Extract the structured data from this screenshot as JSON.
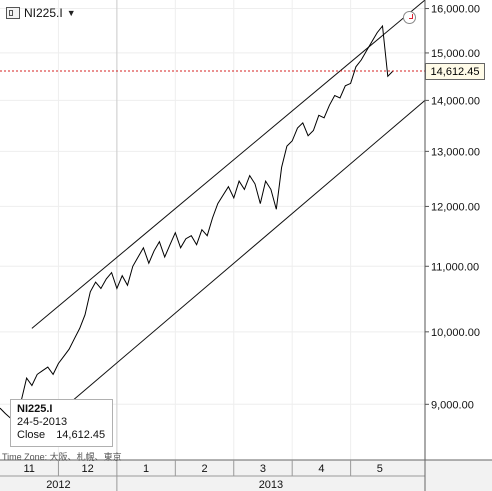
{
  "header": {
    "symbol": "NI225.I",
    "dropdown_icon": "caret-down-icon",
    "symbol_icon": "instrument-icon",
    "clock_icon": "clock-icon"
  },
  "info_box": {
    "symbol": "NI225.I",
    "date": "24-5-2013",
    "close_label": "Close",
    "close_value": "14,612.45"
  },
  "timezone_label": "Time Zone: 大阪、札幌、東京",
  "last_price_label": "14,612.45",
  "chart_data": {
    "type": "line",
    "title": "",
    "xlabel": "",
    "ylabel": "",
    "ylim": [
      8300,
      16200
    ],
    "y_ticks": [
      {
        "value": 9000,
        "label": "9,000.00"
      },
      {
        "value": 10000,
        "label": "10,000.00"
      },
      {
        "value": 11000,
        "label": "11,000.00"
      },
      {
        "value": 12000,
        "label": "12,000.00"
      },
      {
        "value": 13000,
        "label": "13,000.00"
      },
      {
        "value": 14000,
        "label": "14,000.00"
      },
      {
        "value": 15000,
        "label": "15,000.00"
      },
      {
        "value": 16000,
        "label": "16,000.00"
      }
    ],
    "months": [
      {
        "label": "11",
        "start": 0,
        "end": 4.4
      },
      {
        "label": "12",
        "start": 4.4,
        "end": 8.8
      },
      {
        "label": "1",
        "start": 8.8,
        "end": 13.2
      },
      {
        "label": "2",
        "start": 13.2,
        "end": 17.6
      },
      {
        "label": "3",
        "start": 17.6,
        "end": 22
      },
      {
        "label": "4",
        "start": 22,
        "end": 26.4
      },
      {
        "label": "5",
        "start": 26.4,
        "end": 30.8
      }
    ],
    "years": [
      {
        "label": "2012",
        "start": 0,
        "end": 8.8
      },
      {
        "label": "2013",
        "start": 8.8,
        "end": 32
      }
    ],
    "xlim": [
      0,
      32
    ],
    "year_divider_x": 8.8,
    "last_price": 14612.45,
    "series": [
      {
        "x": [
          0,
          0.4,
          0.8,
          1.2,
          1.6,
          2.0,
          2.4,
          2.8,
          3.2,
          3.6,
          4.0,
          4.4,
          4.8,
          5.2,
          5.6,
          6.0,
          6.4,
          6.8,
          7.2,
          7.6,
          8.0,
          8.4,
          8.8,
          9.2,
          9.6,
          10.0,
          10.4,
          10.8,
          11.2,
          11.6,
          12.0,
          12.4,
          12.8,
          13.2,
          13.6,
          14.0,
          14.4,
          14.8,
          15.2,
          15.6,
          16.0,
          16.4,
          16.8,
          17.2,
          17.6,
          18.0,
          18.4,
          18.8,
          19.2,
          19.6,
          20.0,
          20.4,
          20.8,
          21.2,
          21.6,
          22.0,
          22.4,
          22.8,
          23.2,
          23.6,
          24.0,
          24.4,
          24.8,
          25.2,
          25.6,
          26.0,
          26.4,
          26.8,
          27.2,
          27.6,
          28.0,
          28.4,
          28.8,
          29.2,
          29.6
        ],
        "values": [
          8950,
          8880,
          8820,
          8900,
          9050,
          9350,
          9250,
          9400,
          9450,
          9500,
          9400,
          9550,
          9650,
          9750,
          9900,
          10050,
          10250,
          10600,
          10750,
          10650,
          10800,
          10900,
          10650,
          10850,
          10700,
          11000,
          11150,
          11300,
          11050,
          11250,
          11400,
          11150,
          11350,
          11550,
          11300,
          11450,
          11500,
          11350,
          11600,
          11500,
          11800,
          12050,
          12200,
          12350,
          12150,
          12450,
          12300,
          12550,
          12400,
          12050,
          12450,
          12300,
          11950,
          12700,
          13100,
          13200,
          13450,
          13550,
          13300,
          13400,
          13700,
          13650,
          13900,
          14100,
          14050,
          14300,
          14350,
          14700,
          14850,
          15050,
          15250,
          15450,
          15600,
          14500,
          14612.45
        ],
        "name": ""
      }
    ],
    "channel": {
      "upper": {
        "x": [
          2.4,
          32
        ],
        "values": [
          10050,
          16200
        ]
      },
      "lower": {
        "x": [
          4.8,
          32
        ],
        "values": [
          8950,
          14000
        ]
      }
    },
    "grid": true
  }
}
